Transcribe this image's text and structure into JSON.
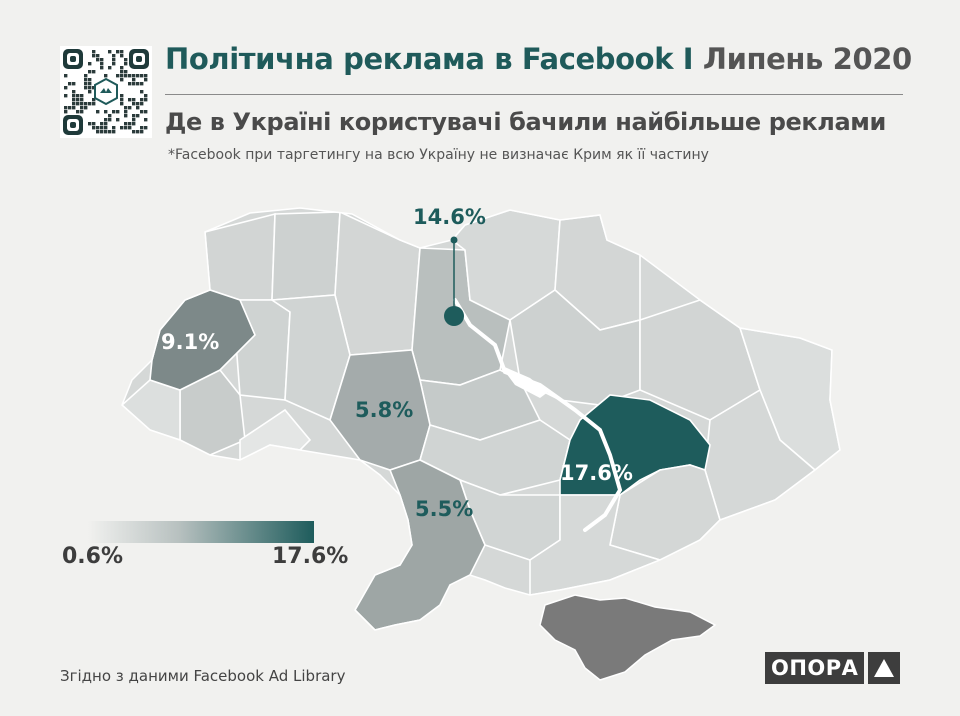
{
  "header": {
    "title_main": "Політична реклама в Facebook",
    "title_separator": "I",
    "title_date": "Липень 2020",
    "subtitle": "Де в Україні користувачі бачили найбільше реклами",
    "note": "*Facebook при таргетингу на всю Україну не  визначає Крим  як її частину"
  },
  "qr": {
    "icon": "qr-code-icon"
  },
  "map": {
    "labels": [
      {
        "id": "kyiv",
        "text": "14.6%",
        "value": 14.6
      },
      {
        "id": "lviv",
        "text": "9.1%",
        "value": 9.1
      },
      {
        "id": "vinnytsia",
        "text": "5.8%",
        "value": 5.8
      },
      {
        "id": "odesa",
        "text": "5.5%",
        "value": 5.5
      },
      {
        "id": "dnipro",
        "text": "17.6%",
        "value": 17.6
      }
    ],
    "colors": {
      "max": "#1e5c5c",
      "lviv": "#7d8989",
      "mid": "#a4abab",
      "light": "#d5d8d7",
      "crimea": "#7a7a7a",
      "label_light": "#ffffff",
      "label_dark": "#1e5c5c"
    }
  },
  "legend": {
    "min_label": "0.6%",
    "max_label": "17.6%",
    "min": 0.6,
    "max": 17.6
  },
  "footer": {
    "source": "Згідно з даними  Facebook Ad Library",
    "logo_text": "ОПОРА",
    "logo_icon": "triangle-icon"
  }
}
